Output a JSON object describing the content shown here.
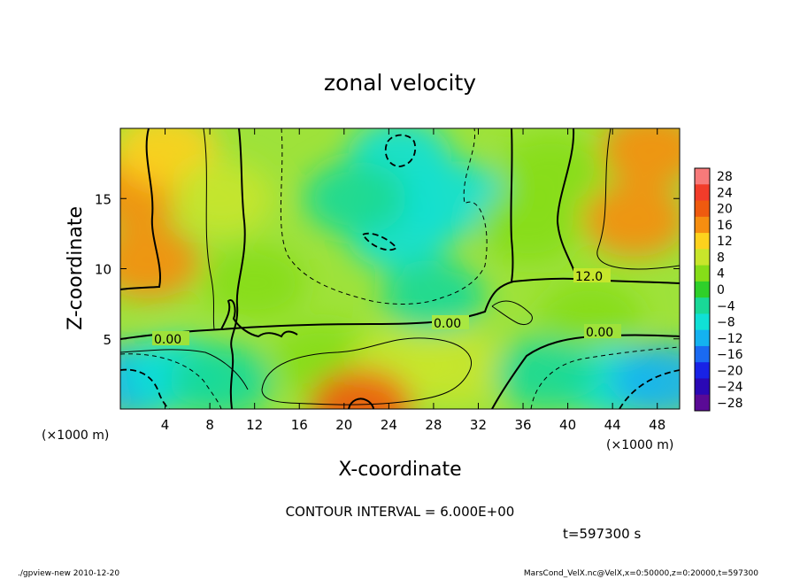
{
  "chart_data": {
    "type": "heatmap",
    "title": "zonal velocity",
    "xlabel": "X-coordinate",
    "ylabel": "Z-coordinate",
    "x_unit": "(×1000 m)",
    "z_unit": "(×1000 m)",
    "xlim": [
      0,
      50
    ],
    "ylim": [
      0,
      20
    ],
    "x_ticks": [
      "4",
      "8",
      "12",
      "16",
      "20",
      "24",
      "28",
      "32",
      "36",
      "40",
      "44",
      "48"
    ],
    "y_ticks": [
      "5",
      "10",
      "15"
    ],
    "colorbar_levels": [
      "28",
      "24",
      "20",
      "16",
      "12",
      "8",
      "4",
      "0",
      "−4",
      "−8",
      "−12",
      "−16",
      "−20",
      "−24",
      "−28"
    ],
    "colorbar_colors": [
      "#f77a7a",
      "#f23c2a",
      "#ef5a0f",
      "#f68e10",
      "#fdd21d",
      "#c8e62b",
      "#86dd18",
      "#2fd02a",
      "#19d997",
      "#10e0d6",
      "#14b2f0",
      "#1a6af2",
      "#1822e6",
      "#2a08b5",
      "#5a0a96"
    ],
    "contour_interval_text": "CONTOUR INTERVAL = 6.000E+00",
    "contour_labels": [
      "0.00",
      "0.00",
      "0.00",
      "12.0"
    ],
    "time_text": "t=597300 s",
    "field_blobs": [
      {
        "x": 1.5,
        "z": 15.5,
        "value": 14
      },
      {
        "x": 2.5,
        "z": 10.5,
        "value": 16
      },
      {
        "x": 4.0,
        "z": 18.5,
        "value": 13
      },
      {
        "x": 9.0,
        "z": 15.0,
        "value": 7
      },
      {
        "x": 12.0,
        "z": 9.0,
        "value": 2
      },
      {
        "x": 25.0,
        "z": 18.0,
        "value": -10
      },
      {
        "x": 25.0,
        "z": 12.5,
        "value": -9
      },
      {
        "x": 21.0,
        "z": 15.0,
        "value": -6
      },
      {
        "x": 30.0,
        "z": 15.0,
        "value": -7
      },
      {
        "x": 28.0,
        "z": 8.0,
        "value": -4
      },
      {
        "x": 36.5,
        "z": 13.0,
        "value": 2
      },
      {
        "x": 38.5,
        "z": 17.0,
        "value": 5
      },
      {
        "x": 46.0,
        "z": 13.5,
        "value": 16
      },
      {
        "x": 47.5,
        "z": 18.5,
        "value": 14
      },
      {
        "x": 42.0,
        "z": 6.5,
        "value": 3
      },
      {
        "x": 18.0,
        "z": 3.5,
        "value": 5
      },
      {
        "x": 25.0,
        "z": 3.0,
        "value": 8
      },
      {
        "x": 21.5,
        "z": 0.2,
        "value": 20
      },
      {
        "x": 30.0,
        "z": 3.0,
        "value": 6
      },
      {
        "x": 1.5,
        "z": 2.0,
        "value": -12
      },
      {
        "x": 5.0,
        "z": 2.5,
        "value": -8
      },
      {
        "x": 9.0,
        "z": 2.0,
        "value": -3
      },
      {
        "x": 44.0,
        "z": 2.0,
        "value": -9
      },
      {
        "x": 48.5,
        "z": 2.0,
        "value": -12
      },
      {
        "x": 38.0,
        "z": 2.5,
        "value": -6
      }
    ]
  },
  "footer": {
    "left": "./gpview-new   2010-12-20",
    "right": "MarsCond_VelX.nc@VelX,x=0:50000,z=0:20000,t=597300"
  }
}
